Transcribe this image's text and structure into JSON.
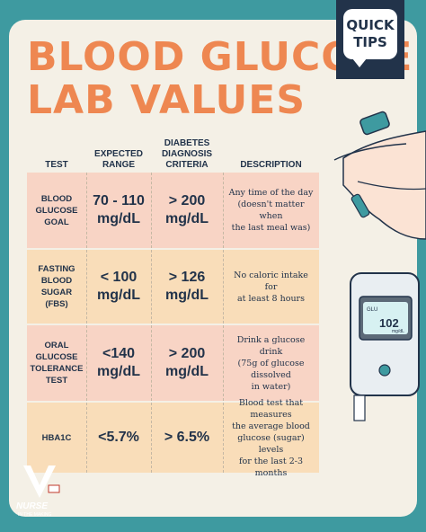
{
  "title": {
    "line1": "BLOOD GLUCOSE",
    "line2": "LAB VALUES"
  },
  "badge": {
    "line1": "QUICK",
    "line2": "TIPS"
  },
  "columns": {
    "test": "TEST",
    "expected": [
      "EXPECTED",
      "RANGE"
    ],
    "diagnosis": [
      "DIABETES",
      "DIAGNOSIS",
      "CRITERIA"
    ],
    "description": "DESCRIPTION"
  },
  "rows": [
    {
      "test": [
        "BLOOD",
        "GLUCOSE",
        "GOAL"
      ],
      "expected": [
        "70 - 110",
        "mg/dL"
      ],
      "diagnosis": [
        "> 200",
        "mg/dL"
      ],
      "description": [
        "Any time of the day",
        "(doesn't matter when",
        "the last meal was)"
      ],
      "color": "#f8d4c5"
    },
    {
      "test": [
        "FASTING",
        "BLOOD",
        "SUGAR",
        "(FBS)"
      ],
      "expected": [
        "< 100",
        "mg/dL"
      ],
      "diagnosis": [
        "> 126",
        "mg/dL"
      ],
      "description": [
        "No caloric intake for",
        "at least 8 hours"
      ],
      "color": "#f9ddb9"
    },
    {
      "test": [
        "ORAL",
        "GLUCOSE",
        "TOLERANCE",
        "TEST"
      ],
      "expected": [
        "<140",
        "mg/dL"
      ],
      "diagnosis": [
        "> 200",
        "mg/dL"
      ],
      "description": [
        "Drink a glucose drink",
        "(75g of glucose dissolved",
        "in water)"
      ],
      "color": "#f8d4c5"
    },
    {
      "test": [
        "HBA1C"
      ],
      "expected": [
        "<5.7%"
      ],
      "diagnosis": [
        "> 6.5%"
      ],
      "description": [
        "Blood test that measures",
        "the average blood",
        "glucose (sugar) levels",
        "for the last 2-3 months"
      ],
      "color": "#f9ddb9"
    }
  ],
  "meter": {
    "label": "GLU",
    "reading": "102",
    "unit": "mg/dL"
  },
  "logo": {
    "line1": "NURSE",
    "line2": "IN THE MAKING"
  },
  "colors": {
    "teal": "#3e9aa0",
    "navy": "#22334a",
    "orange": "#ee8751",
    "cream": "#f4f0e6"
  }
}
